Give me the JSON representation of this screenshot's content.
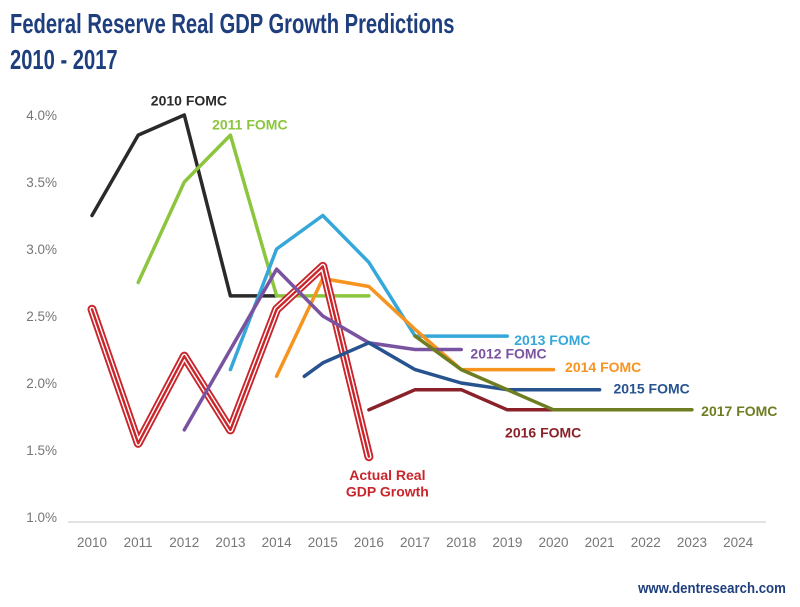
{
  "title": {
    "line1": "Federal Reserve Real GDP Growth Predictions",
    "line2": "2010 - 2017"
  },
  "watermark": "www.dentresearch.com",
  "chart_data": {
    "type": "line",
    "title": "Federal Reserve Real GDP Growth Predictions 2010 - 2017",
    "xlabel": "",
    "ylabel": "",
    "grid": "baseline-only",
    "legend_position": "inline-labels",
    "xlim": [
      2009.5,
      2024.5
    ],
    "ylim": [
      1.0,
      4.0
    ],
    "y_axis": {
      "ticks": [
        {
          "label": "4.0%",
          "value": 4.0
        },
        {
          "label": "3.5%",
          "value": 3.5
        },
        {
          "label": "3.0%",
          "value": 3.0
        },
        {
          "label": "2.5%",
          "value": 2.5
        },
        {
          "label": "2.0%",
          "value": 2.0
        },
        {
          "label": "1.5%",
          "value": 1.5
        },
        {
          "label": "1.0%",
          "value": 1.0
        }
      ]
    },
    "x_axis": {
      "ticks": [
        {
          "label": "2010",
          "value": 2010
        },
        {
          "label": "2011",
          "value": 2011
        },
        {
          "label": "2012",
          "value": 2012
        },
        {
          "label": "2013",
          "value": 2013
        },
        {
          "label": "2014",
          "value": 2014
        },
        {
          "label": "2015",
          "value": 2015
        },
        {
          "label": "2016",
          "value": 2016
        },
        {
          "label": "2017",
          "value": 2017
        },
        {
          "label": "2018",
          "value": 2018
        },
        {
          "label": "2019",
          "value": 2019
        },
        {
          "label": "2020",
          "value": 2020
        },
        {
          "label": "2021",
          "value": 2021
        },
        {
          "label": "2022",
          "value": 2022
        },
        {
          "label": "2023",
          "value": 2023
        },
        {
          "label": "2024",
          "value": 2024
        }
      ]
    },
    "series": [
      {
        "id": "fomc-2010",
        "name": "2010 FOMC",
        "color": "#2b2a29",
        "style": "solid",
        "points": [
          [
            2010,
            3.25
          ],
          [
            2011,
            3.85
          ],
          [
            2012,
            4.0
          ],
          [
            2013,
            2.65
          ],
          [
            2014,
            2.65
          ]
        ]
      },
      {
        "id": "fomc-2011",
        "name": "2011 FOMC",
        "color": "#8cc63e",
        "style": "solid",
        "points": [
          [
            2011,
            2.75
          ],
          [
            2012,
            3.5
          ],
          [
            2013,
            3.85
          ],
          [
            2014,
            2.65
          ],
          [
            2015,
            2.65
          ],
          [
            2016,
            2.65
          ]
        ]
      },
      {
        "id": "fomc-2013",
        "name": "2013 FOMC",
        "color": "#35a7d9",
        "style": "solid",
        "points": [
          [
            2013,
            2.1
          ],
          [
            2014,
            3.0
          ],
          [
            2015,
            3.25
          ],
          [
            2016,
            2.9
          ],
          [
            2017,
            2.35
          ],
          [
            2018,
            2.35
          ],
          [
            2019,
            2.35
          ]
        ]
      },
      {
        "id": "fomc-2014",
        "name": "2014 FOMC",
        "color": "#f79420",
        "style": "solid",
        "points": [
          [
            2014,
            2.05
          ],
          [
            2015,
            2.78
          ],
          [
            2016,
            2.72
          ],
          [
            2017,
            2.4
          ],
          [
            2018,
            2.1
          ],
          [
            2019,
            2.1
          ],
          [
            2020,
            2.1
          ]
        ]
      },
      {
        "id": "actual-real-gdp-growth",
        "name": "Actual Real GDP Growth",
        "color": "#c9252b",
        "style": "double",
        "points": [
          [
            2010,
            2.55
          ],
          [
            2011,
            1.55
          ],
          [
            2012,
            2.2
          ],
          [
            2013,
            1.65
          ],
          [
            2014,
            2.55
          ],
          [
            2015,
            2.87
          ],
          [
            2016,
            1.45
          ]
        ]
      },
      {
        "id": "fomc-2012",
        "name": "2012 FOMC",
        "color": "#7953a0",
        "style": "solid",
        "points": [
          [
            2012,
            1.65
          ],
          [
            2013,
            2.25
          ],
          [
            2014,
            2.85
          ],
          [
            2015,
            2.5
          ],
          [
            2016,
            2.3
          ],
          [
            2017,
            2.25
          ],
          [
            2018,
            2.25
          ]
        ]
      },
      {
        "id": "fomc-2015",
        "name": "2015 FOMC",
        "color": "#27538f",
        "style": "solid",
        "points": [
          [
            2014.6,
            2.05
          ],
          [
            2015,
            2.15
          ],
          [
            2016,
            2.3
          ],
          [
            2017,
            2.1
          ],
          [
            2018,
            2.0
          ],
          [
            2019,
            1.95
          ],
          [
            2020,
            1.95
          ],
          [
            2021,
            1.95
          ]
        ]
      },
      {
        "id": "fomc-2016",
        "name": "2016 FOMC",
        "color": "#8a2028",
        "style": "solid",
        "points": [
          [
            2016,
            1.8
          ],
          [
            2017,
            1.95
          ],
          [
            2018,
            1.95
          ],
          [
            2019,
            1.8
          ],
          [
            2020,
            1.8
          ]
        ]
      },
      {
        "id": "fomc-2017",
        "name": "2017 FOMC",
        "color": "#6e7d22",
        "style": "solid",
        "points": [
          [
            2017,
            2.35
          ],
          [
            2018,
            2.1
          ],
          [
            2019,
            1.95
          ],
          [
            2020,
            1.8
          ],
          [
            2021,
            1.8
          ],
          [
            2022,
            1.8
          ],
          [
            2023,
            1.8
          ]
        ]
      }
    ],
    "labels": [
      {
        "text": "2010 FOMC",
        "color": "#2b2a29",
        "x": 2012.1,
        "y": 4.11,
        "anchor": "middle"
      },
      {
        "text": "2011 FOMC",
        "color": "#8cc63e",
        "x": 2013.42,
        "y": 3.93,
        "anchor": "middle"
      },
      {
        "text": "2013 FOMC",
        "color": "#35a7d9",
        "x": 2019.15,
        "y": 2.32,
        "anchor": "start"
      },
      {
        "text": "2012 FOMC",
        "color": "#7953a0",
        "x": 2018.2,
        "y": 2.22,
        "anchor": "start"
      },
      {
        "text": "2014 FOMC",
        "color": "#f79420",
        "x": 2020.25,
        "y": 2.12,
        "anchor": "start"
      },
      {
        "text": "2015 FOMC",
        "color": "#27538f",
        "x": 2021.3,
        "y": 1.96,
        "anchor": "start"
      },
      {
        "text": "2016 FOMC",
        "color": "#8a2028",
        "x": 2018.95,
        "y": 1.63,
        "anchor": "start"
      },
      {
        "text": "2017 FOMC",
        "color": "#6e7d22",
        "x": 2023.2,
        "y": 1.79,
        "anchor": "start"
      },
      {
        "text": "Actual Real",
        "color": "#c9252b",
        "x": 2016.4,
        "y": 1.315,
        "anchor": "middle"
      },
      {
        "text": "GDP Growth",
        "color": "#c9252b",
        "x": 2016.4,
        "y": 1.19,
        "anchor": "middle"
      }
    ],
    "axis_style": {
      "tick_color": "#767676",
      "baseline_color": "#d9d9d9"
    }
  }
}
